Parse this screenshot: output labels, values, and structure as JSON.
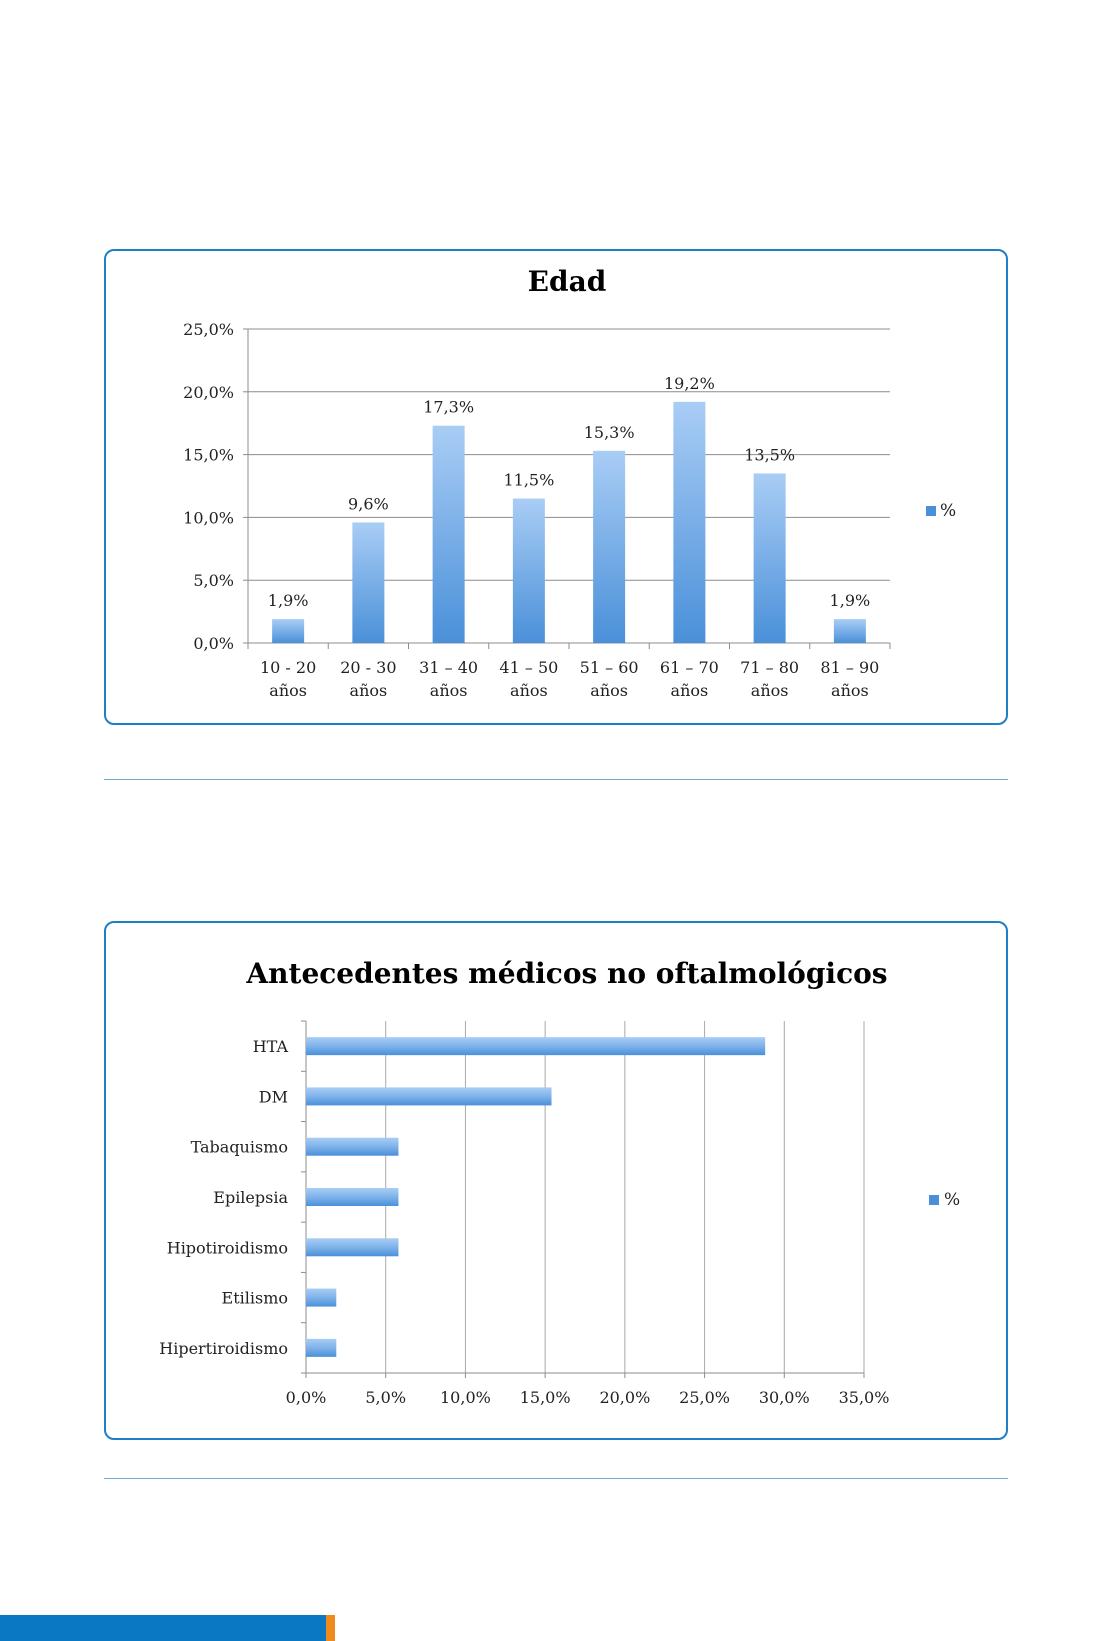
{
  "colors": {
    "card_border": "#1f7fc4",
    "bar_light": "#a9cdf5",
    "bar_dark": "#4a90d9",
    "grid": "#8c8c8c",
    "footer_blue": "#0a78c2",
    "footer_orange": "#f08a1c"
  },
  "chart_data": [
    {
      "type": "bar",
      "orientation": "vertical",
      "title": "Edad",
      "categories": [
        [
          "10 - 20",
          "años"
        ],
        [
          "20 - 30",
          "años"
        ],
        [
          "31 – 40",
          "años"
        ],
        [
          "41 – 50",
          "años"
        ],
        [
          "51 – 60",
          "años"
        ],
        [
          "61 – 70",
          "años"
        ],
        [
          "71 – 80",
          "años"
        ],
        [
          "81 – 90",
          "años"
        ]
      ],
      "series": [
        {
          "name": "%",
          "values": [
            1.9,
            9.6,
            17.3,
            11.5,
            15.3,
            19.2,
            13.5,
            1.9
          ]
        }
      ],
      "data_labels": [
        "1,9%",
        "9,6%",
        "17,3%",
        "11,5%",
        "15,3%",
        "19,2%",
        "13,5%",
        "1,9%"
      ],
      "y_ticks": [
        "0,0%",
        "5,0%",
        "10,0%",
        "15,0%",
        "20,0%",
        "25,0%"
      ],
      "ylim": [
        0,
        25
      ],
      "grid": true,
      "legend": "right"
    },
    {
      "type": "bar",
      "orientation": "horizontal",
      "title": "Antecedentes médicos no oftalmológicos",
      "categories": [
        "HTA",
        "DM",
        "Tabaquismo",
        "Epilepsia",
        "Hipotiroidismo",
        "Etilismo",
        "Hipertiroidismo"
      ],
      "series": [
        {
          "name": "%",
          "values": [
            28.8,
            15.4,
            5.8,
            5.8,
            5.8,
            1.9,
            1.9
          ]
        }
      ],
      "x_ticks": [
        "0,0%",
        "5,0%",
        "10,0%",
        "15,0%",
        "20,0%",
        "25,0%",
        "30,0%",
        "35,0%"
      ],
      "xlim": [
        0,
        35
      ],
      "grid": true,
      "legend": "right"
    }
  ]
}
